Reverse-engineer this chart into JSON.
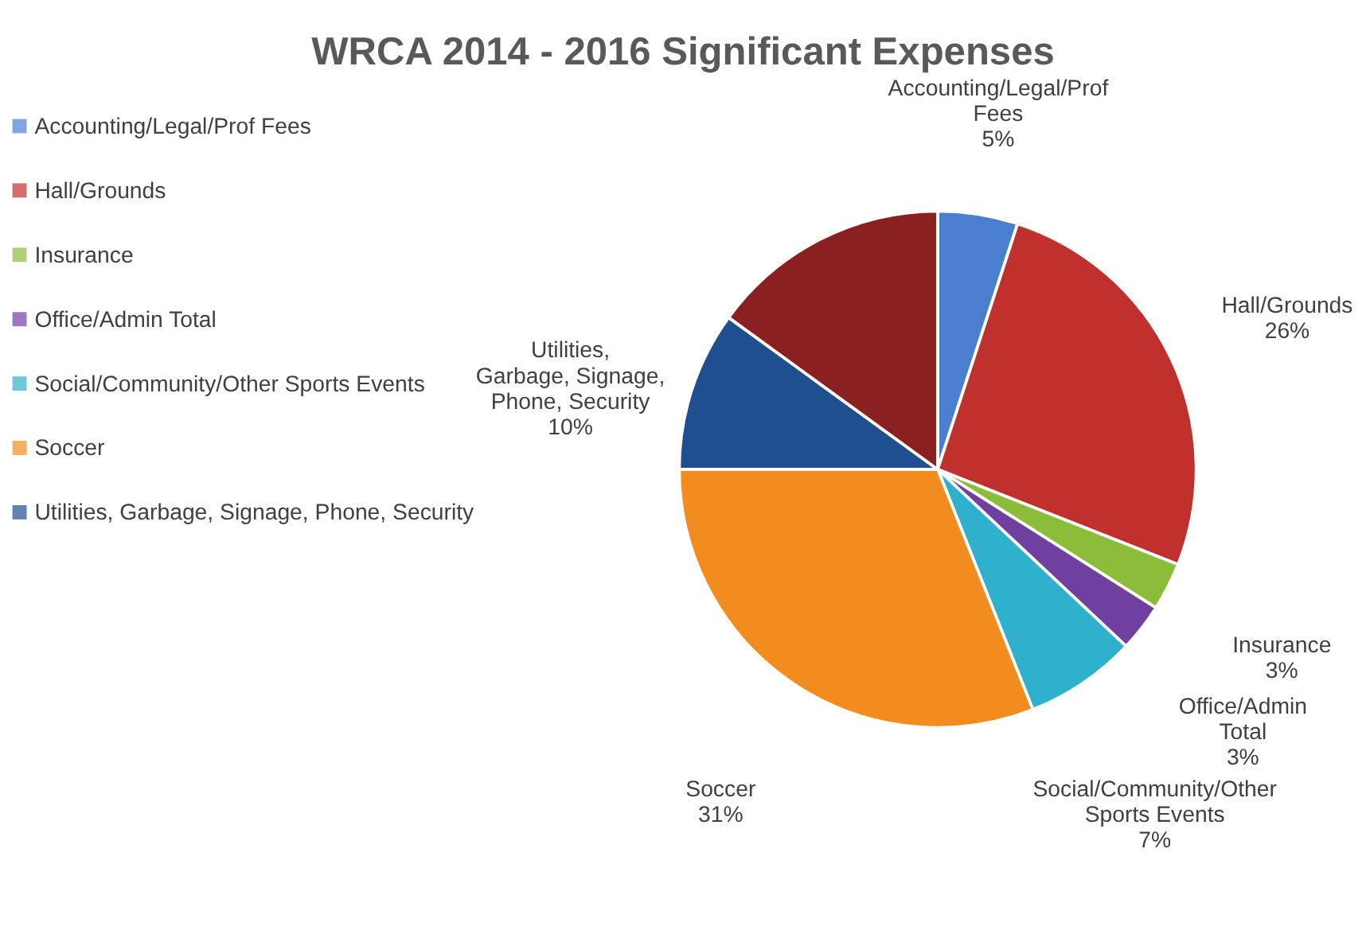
{
  "chart_data": {
    "type": "pie",
    "title": "WRCA 2014 - 2016 Significant Expenses",
    "categories": [
      "Accounting/Legal/Prof Fees",
      "Hall/Grounds",
      "Insurance",
      "Office/Admin Total",
      "Social/Community/Other Sports Events",
      "Soccer",
      "Utilities, Garbage, Signage, Phone, Security",
      null
    ],
    "values": [
      5,
      26,
      3,
      3,
      7,
      31,
      10,
      15
    ],
    "value_labels": [
      "5%",
      "26%",
      "3%",
      "3%",
      "7%",
      "31%",
      "10%",
      null
    ],
    "colors": [
      "#4a7fcf",
      "#c0302c",
      "#8cbd3a",
      "#7040a0",
      "#2fb0cc",
      "#f28c1e",
      "#1f4f8f",
      "#8b2020"
    ],
    "legend": "left"
  }
}
